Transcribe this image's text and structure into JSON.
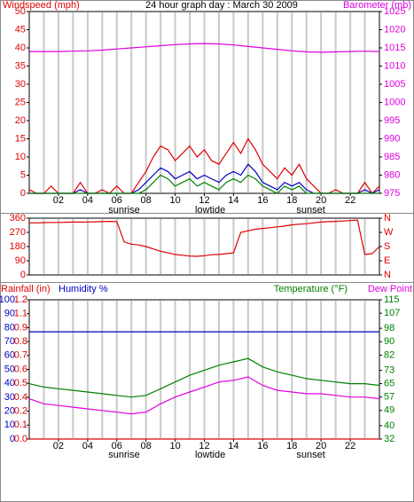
{
  "chart_data": [
    {
      "type": "line",
      "title": "24 hour graph day : March 30 2009",
      "y_label": "Windspeed (mph)",
      "y2_label": "Barometer (mb)",
      "y_color": "#e00000",
      "y2_color": "#e000e0",
      "xlim": [
        0,
        24
      ],
      "xticks": [
        {
          "value": 2,
          "label": "02"
        },
        {
          "value": 4,
          "label": "04"
        },
        {
          "value": 6,
          "label": "06"
        },
        {
          "value": 8,
          "label": "08"
        },
        {
          "value": 10,
          "label": "10"
        },
        {
          "value": 12,
          "label": "12"
        },
        {
          "value": 14,
          "label": "14"
        },
        {
          "value": 16,
          "label": "16"
        },
        {
          "value": 18,
          "label": "18"
        },
        {
          "value": 20,
          "label": "20"
        },
        {
          "value": 22,
          "label": "22"
        }
      ],
      "annotations": [
        {
          "text": "sunrise",
          "x": 6.5
        },
        {
          "text": "lowtide",
          "x": 12.4
        },
        {
          "text": "sunset",
          "x": 19.3
        }
      ],
      "ylim": [
        0,
        50
      ],
      "yticks": [
        0,
        5,
        10,
        15,
        20,
        25,
        30,
        35,
        40,
        45,
        50
      ],
      "y2lim": [
        975,
        1025
      ],
      "y2ticks": [
        975,
        980,
        985,
        990,
        995,
        1000,
        1005,
        1010,
        1015,
        1020,
        1025
      ],
      "series": [
        {
          "color": "#e00000",
          "x": [
            0,
            0.5,
            1,
            1.5,
            2,
            2.5,
            3,
            3.5,
            4,
            4.5,
            5,
            5.5,
            6,
            6.5,
            7,
            7.5,
            8,
            8.5,
            9,
            9.5,
            10,
            10.5,
            11,
            11.5,
            12,
            12.5,
            13,
            13.5,
            14,
            14.5,
            15,
            15.5,
            16,
            16.5,
            17,
            17.5,
            18,
            18.5,
            19,
            19.5,
            20,
            20.5,
            21,
            21.5,
            22,
            22.5,
            23,
            23.5,
            24
          ],
          "values": [
            1,
            0,
            0,
            2,
            0,
            0,
            0,
            3,
            0,
            0,
            1,
            0,
            2,
            0,
            0,
            3,
            6,
            10,
            13,
            12,
            9,
            11,
            13,
            10,
            12,
            9,
            8,
            11,
            14,
            11,
            15,
            12,
            8,
            6,
            4,
            7,
            5,
            8,
            4,
            2,
            0,
            0,
            1,
            0,
            0,
            0,
            3,
            0,
            2
          ]
        },
        {
          "color": "#0000c0",
          "x": [
            0,
            0.5,
            1,
            1.5,
            2,
            2.5,
            3,
            3.5,
            4,
            4.5,
            5,
            5.5,
            6,
            6.5,
            7,
            7.5,
            8,
            8.5,
            9,
            9.5,
            10,
            10.5,
            11,
            11.5,
            12,
            12.5,
            13,
            13.5,
            14,
            14.5,
            15,
            15.5,
            16,
            16.5,
            17,
            17.5,
            18,
            18.5,
            19,
            19.5,
            20,
            20.5,
            21,
            21.5,
            22,
            22.5,
            23,
            23.5,
            24
          ],
          "values": [
            0,
            0,
            0,
            0,
            0,
            0,
            0,
            1,
            0,
            0,
            0,
            0,
            0,
            0,
            0,
            1,
            3,
            5,
            7,
            6,
            4,
            5,
            6,
            4,
            5,
            4,
            3,
            5,
            6,
            5,
            8,
            6,
            3,
            2,
            1,
            3,
            2,
            3,
            1,
            0,
            0,
            0,
            0,
            0,
            0,
            0,
            1,
            0,
            1
          ]
        },
        {
          "color": "#008000",
          "x": [
            0,
            0.5,
            1,
            1.5,
            2,
            2.5,
            3,
            3.5,
            4,
            4.5,
            5,
            5.5,
            6,
            6.5,
            7,
            7.5,
            8,
            8.5,
            9,
            9.5,
            10,
            10.5,
            11,
            11.5,
            12,
            12.5,
            13,
            13.5,
            14,
            14.5,
            15,
            15.5,
            16,
            16.5,
            17,
            17.5,
            18,
            18.5,
            19,
            19.5,
            20,
            20.5,
            21,
            21.5,
            22,
            22.5,
            23,
            23.5,
            24
          ],
          "values": [
            0,
            0,
            0,
            0,
            0,
            0,
            0,
            0,
            0,
            0,
            0,
            0,
            0,
            0,
            0,
            0,
            1,
            3,
            5,
            4,
            2,
            3,
            4,
            2,
            3,
            2,
            1,
            3,
            4,
            3,
            5,
            4,
            2,
            1,
            0,
            2,
            1,
            2,
            0,
            0,
            0,
            0,
            0,
            0,
            0,
            0,
            0,
            0,
            0
          ]
        },
        {
          "color": "#e000e0",
          "axis": "y2",
          "x": [
            0,
            1,
            2,
            3,
            4,
            5,
            6,
            7,
            8,
            9,
            10,
            11,
            12,
            13,
            14,
            15,
            16,
            17,
            18,
            19,
            20,
            21,
            22,
            23,
            24
          ],
          "values": [
            1014.0,
            1014.0,
            1014.0,
            1014.1,
            1014.2,
            1014.4,
            1014.7,
            1015.0,
            1015.3,
            1015.6,
            1015.9,
            1016.1,
            1016.2,
            1016.1,
            1015.8,
            1015.4,
            1015.0,
            1014.6,
            1014.2,
            1013.9,
            1013.8,
            1013.9,
            1014.0,
            1014.1,
            1014.0
          ]
        }
      ]
    },
    {
      "type": "line",
      "y_color": "#e00000",
      "y2_color": "#e00000",
      "xlim": [
        0,
        24
      ],
      "ylim": [
        0,
        360
      ],
      "yticks": [
        0,
        90,
        180,
        270,
        360
      ],
      "y2lim": [
        0,
        360
      ],
      "y2ticks": [
        {
          "value": 0,
          "label": "N"
        },
        {
          "value": 90,
          "label": "E"
        },
        {
          "value": 180,
          "label": "S"
        },
        {
          "value": 270,
          "label": "W"
        },
        {
          "value": 360,
          "label": "N"
        }
      ],
      "series": [
        {
          "color": "#e00000",
          "x": [
            0,
            0.5,
            1,
            1.5,
            2,
            2.5,
            3,
            3.5,
            4,
            4.5,
            5,
            5.5,
            6,
            6.5,
            7,
            7.5,
            8,
            8.5,
            9,
            9.5,
            10,
            10.5,
            11,
            11.5,
            12,
            12.5,
            13,
            13.5,
            14,
            14.5,
            15,
            15.5,
            16,
            16.5,
            17,
            17.5,
            18,
            18.5,
            19,
            19.5,
            20,
            20.5,
            21,
            21.5,
            22,
            22.5,
            23,
            23.5,
            24
          ],
          "values": [
            330,
            330,
            332,
            333,
            333,
            334,
            335,
            335,
            336,
            337,
            338,
            340,
            338,
            210,
            195,
            190,
            180,
            165,
            150,
            140,
            130,
            125,
            120,
            118,
            122,
            128,
            130,
            135,
            140,
            270,
            280,
            290,
            295,
            300,
            305,
            310,
            318,
            322,
            325,
            330,
            335,
            338,
            340,
            342,
            345,
            348,
            130,
            135,
            180
          ]
        }
      ]
    },
    {
      "type": "line",
      "y_color": "#0000c0",
      "y3_color": "#e00000",
      "y2_color": "#008000",
      "xlim": [
        0,
        24
      ],
      "xticks": [
        {
          "value": 2,
          "label": "02"
        },
        {
          "value": 4,
          "label": "04"
        },
        {
          "value": 6,
          "label": "06"
        },
        {
          "value": 8,
          "label": "08"
        },
        {
          "value": 10,
          "label": "10"
        },
        {
          "value": 12,
          "label": "12"
        },
        {
          "value": 14,
          "label": "14"
        },
        {
          "value": 16,
          "label": "16"
        },
        {
          "value": 18,
          "label": "18"
        },
        {
          "value": 20,
          "label": "20"
        },
        {
          "value": 22,
          "label": "22"
        }
      ],
      "annotations": [
        {
          "text": "sunrise",
          "x": 6.5
        },
        {
          "text": "lowtide",
          "x": 12.4
        },
        {
          "text": "sunset",
          "x": 19.3
        }
      ],
      "ylim": [
        0,
        100
      ],
      "yticks": [
        0,
        10,
        20,
        30,
        40,
        50,
        60,
        70,
        80,
        90,
        100
      ],
      "y3lim": [
        0,
        1.2
      ],
      "y3tick_labels": [
        "0.0",
        "0.1",
        "0.2",
        "0.4",
        "0.5",
        "0.6",
        "0.7",
        "0.8",
        "0.9",
        "1.1",
        "1.2"
      ],
      "y2lim": [
        32,
        115
      ],
      "y2ticks": [
        32,
        40,
        49,
        57,
        65,
        73,
        82,
        90,
        98,
        107,
        115
      ],
      "x": [
        0,
        1,
        2,
        3,
        4,
        5,
        6,
        7,
        8,
        9,
        10,
        11,
        12,
        13,
        14,
        15,
        16,
        17,
        18,
        19,
        20,
        21,
        22,
        23,
        24
      ],
      "series": [
        {
          "name": "Rainfall (in)",
          "color": "#e00000",
          "axis": "y3",
          "values": [
            0,
            0,
            0,
            0,
            0,
            0,
            0,
            0,
            0,
            0,
            0,
            0,
            0,
            0,
            0,
            0,
            0,
            0,
            0,
            0,
            0,
            0,
            0,
            0,
            0
          ]
        },
        {
          "name": "Humidity %",
          "color": "#0000c0",
          "values": [
            77,
            77,
            77,
            77,
            77,
            77,
            77,
            77,
            77,
            77,
            77,
            77,
            77,
            77,
            77,
            77,
            77,
            77,
            77,
            77,
            77,
            77,
            77,
            77,
            77
          ]
        },
        {
          "name": "Temperature (°F)",
          "color": "#008000",
          "axis": "y2",
          "values": [
            65,
            63,
            62,
            61,
            60,
            59,
            58,
            57,
            58,
            62,
            66,
            70,
            73,
            76,
            78,
            80,
            75,
            72,
            70,
            68,
            67,
            66,
            65,
            65,
            64
          ]
        },
        {
          "name": "Dew Point",
          "color": "#e000e0",
          "axis": "y2",
          "values": [
            56,
            53,
            52,
            51,
            50,
            49,
            48,
            47,
            48,
            53,
            57,
            60,
            63,
            66,
            67,
            69,
            64,
            61,
            60,
            59,
            59,
            58,
            57,
            57,
            56
          ]
        }
      ]
    }
  ]
}
